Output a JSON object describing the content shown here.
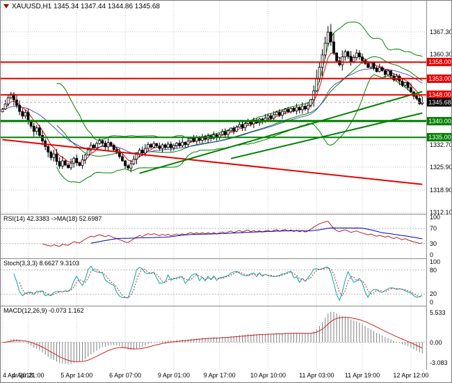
{
  "window": {
    "title": "XAUUSD,H1"
  },
  "legends": {
    "main": "XAUUSD,H1 1345.34 1347.44 1344.86 1345.68",
    "rsi": "RSI(14) 42.3383 ->MA(18) 52.6987",
    "stoch": "Stoch(3,3,3) 8.6627 9.3103",
    "macd": "MACD(12,26,9) -0.073 1.162"
  },
  "colors": {
    "up": "#ffffff",
    "down": "#000000",
    "outline": "#000000",
    "bb": "#008000",
    "ma_fast": "#dd0000",
    "ma_slow": "#4040c0",
    "grid": "#c9c9c9",
    "level_res": "#e60000",
    "level_sup": "#008000",
    "rsi": "#b22222",
    "rsi_ma": "#0000b8",
    "stoch_k": "#00a8a8",
    "stoch_d": "#cc2222",
    "macd_hist": "#808080",
    "macd_signal": "#cc2222",
    "badge_current": "#000000"
  },
  "chart_data": {
    "type": "candlestick",
    "symbol": "XAUUSD",
    "timeframe": "H1",
    "current": {
      "open": 1345.34,
      "high": 1347.44,
      "low": 1344.86,
      "close": 1345.68
    },
    "open_first": 1342.8,
    "closes": [
      1343.6,
      1345.2,
      1347.1,
      1348.2,
      1346.4,
      1344.8,
      1342.9,
      1341.5,
      1342.6,
      1340.2,
      1338.4,
      1336.8,
      1337.9,
      1335.6,
      1333.9,
      1332.2,
      1330.5,
      1328.8,
      1329.9,
      1327.6,
      1326.2,
      1327.8,
      1326.5,
      1325.7,
      1327.1,
      1328.6,
      1327.2,
      1326.4,
      1328.1,
      1329.6,
      1331.2,
      1332.6,
      1331.8,
      1333.1,
      1334.0,
      1333.2,
      1332.1,
      1333.4,
      1332.6,
      1331.2,
      1330.4,
      1329.1,
      1327.8,
      1326.3,
      1325.6,
      1326.9,
      1328.3,
      1329.8,
      1331.1,
      1330.2,
      1331.6,
      1332.8,
      1332.0,
      1333.1,
      1332.4,
      1331.6,
      1332.7,
      1331.9,
      1332.9,
      1331.8,
      1332.5,
      1333.2,
      1332.4,
      1333.5,
      1332.8,
      1333.9,
      1334.7,
      1333.8,
      1334.9,
      1334.1,
      1335.2,
      1334.4,
      1335.5,
      1334.7,
      1335.8,
      1335.0,
      1335.9,
      1336.7,
      1335.9,
      1337.0,
      1337.8,
      1336.9,
      1338.1,
      1338.9,
      1338.0,
      1339.2,
      1340.0,
      1339.1,
      1340.3,
      1339.5,
      1340.6,
      1339.8,
      1340.9,
      1341.6,
      1340.8,
      1341.9,
      1342.7,
      1341.8,
      1342.9,
      1343.6,
      1342.8,
      1343.9,
      1343.1,
      1344.2,
      1343.4,
      1344.5,
      1343.7,
      1344.8,
      1346.5,
      1349.2,
      1352.8,
      1356.4,
      1360.2,
      1363.8,
      1367.2,
      1364.2,
      1360.8,
      1358.4,
      1357.2,
      1359.6,
      1361.2,
      1359.8,
      1358.2,
      1359.4,
      1360.8,
      1359.6,
      1358.4,
      1357.6,
      1356.4,
      1357.8,
      1356.2,
      1355.1,
      1356.3,
      1355.4,
      1354.2,
      1355.3,
      1353.8,
      1352.6,
      1353.7,
      1352.2,
      1350.9,
      1351.8,
      1350.2,
      1348.9,
      1347.6,
      1346.9,
      1345.3,
      1345.68
    ],
    "y_axis": {
      "range": [
        1311.6,
        1376.8
      ],
      "grid": [
        1312.1,
        1318.9,
        1325.9,
        1332.7,
        1339.5,
        1346.3,
        1353.1,
        1360.3,
        1367.3
      ],
      "plain_ticks": [
        {
          "t": "1367.30",
          "v": 1367.3
        },
        {
          "t": "1360.30",
          "v": 1360.3
        },
        {
          "t": "1332.70",
          "v": 1332.7
        },
        {
          "t": "1325.90",
          "v": 1325.9
        },
        {
          "t": "1318.90",
          "v": 1318.9
        },
        {
          "t": "1312.10",
          "v": 1312.1
        }
      ],
      "badges": [
        {
          "t": "1358.00",
          "v": 1358.0,
          "kind": "resistance"
        },
        {
          "t": "1353.00",
          "v": 1353.0,
          "kind": "resistance"
        },
        {
          "t": "1348.00",
          "v": 1348.0,
          "kind": "resistance"
        },
        {
          "t": "1340.00",
          "v": 1340.0,
          "kind": "support"
        },
        {
          "t": "1335.00",
          "v": 1335.0,
          "kind": "support"
        },
        {
          "t": "1345.68",
          "v": 1345.68,
          "kind": "current"
        }
      ]
    },
    "levels": [
      {
        "v": 1358.0,
        "kind": "resistance",
        "w": 2
      },
      {
        "v": 1353.0,
        "kind": "resistance",
        "w": 2
      },
      {
        "v": 1348.0,
        "kind": "resistance",
        "w": 2
      },
      {
        "v": 1340.0,
        "kind": "support",
        "w": 3
      },
      {
        "v": 1335.0,
        "kind": "support",
        "w": 2
      }
    ],
    "trendlines": [
      {
        "i1": 0,
        "p1": 1334.3,
        "i2": 147,
        "p2": 1320.6,
        "kind": "resistance",
        "w": 2
      },
      {
        "i1": 48,
        "p1": 1324.0,
        "i2": 147,
        "p2": 1349.0,
        "kind": "support",
        "w": 2
      },
      {
        "i1": 80,
        "p1": 1328.5,
        "i2": 147,
        "p2": 1342.4,
        "kind": "support",
        "w": 2
      }
    ],
    "overlays": {
      "bollinger_period": 20,
      "bollinger_dev": 2,
      "ma_fast_period": 6,
      "ma_slow_period": 24
    },
    "x_labels": [
      {
        "t": "4 Apr 2018",
        "i": 0
      },
      {
        "t": "4 Apr 21:00",
        "i": 9
      },
      {
        "t": "5 Apr 14:00",
        "i": 26
      },
      {
        "t": "6 Apr 07:00",
        "i": 43
      },
      {
        "t": "9 Apr 01:00",
        "i": 60
      },
      {
        "t": "9 Apr 17:00",
        "i": 76
      },
      {
        "t": "10 Apr 10:00",
        "i": 93
      },
      {
        "t": "11 Apr 03:00",
        "i": 110
      },
      {
        "t": "11 Apr 19:00",
        "i": 126
      },
      {
        "t": "12 Apr 12:00",
        "i": 143
      }
    ],
    "panels": {
      "rsi": {
        "period": 14,
        "ma_period": 18,
        "value": 42.3383,
        "ma_value": 52.6987,
        "ticks": [
          {
            "t": "100",
            "v": 100
          },
          {
            "t": "70",
            "v": 70
          },
          {
            "t": "30",
            "v": 30
          },
          {
            "t": "0",
            "v": 0
          }
        ],
        "level_lines": [
          70,
          30
        ]
      },
      "stoch": {
        "k": 3,
        "d": 3,
        "slowing": 3,
        "value_k": 8.6627,
        "value_d": 9.3103,
        "ticks": [
          {
            "t": "100",
            "v": 100
          },
          {
            "t": "80",
            "v": 80
          },
          {
            "t": "20",
            "v": 20
          },
          {
            "t": "0",
            "v": 0
          }
        ],
        "level_lines": [
          80,
          20
        ]
      },
      "macd": {
        "fast": 12,
        "slow": 26,
        "signal": 9,
        "value": -0.073,
        "signal_value": 1.162,
        "ticks": {
          "max": "5.533",
          "zero": "0.00",
          "min": "-3.083"
        }
      }
    }
  }
}
